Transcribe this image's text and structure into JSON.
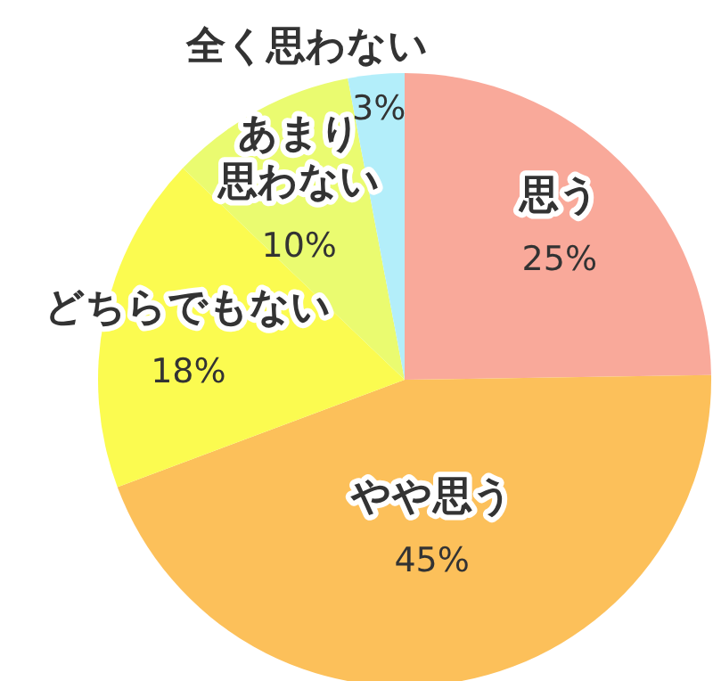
{
  "chart_data": {
    "type": "pie",
    "categories": [
      "思う",
      "やや思う",
      "どちらでもない",
      "あまり思わない",
      "全く思わない"
    ],
    "values": [
      25,
      45,
      18,
      10,
      3
    ],
    "value_labels": [
      "25%",
      "45%",
      "18%",
      "10%",
      "3%"
    ],
    "colors": [
      "#f9a99a",
      "#fcc05a",
      "#fbfb50",
      "#eafb70",
      "#b3eefa"
    ]
  }
}
